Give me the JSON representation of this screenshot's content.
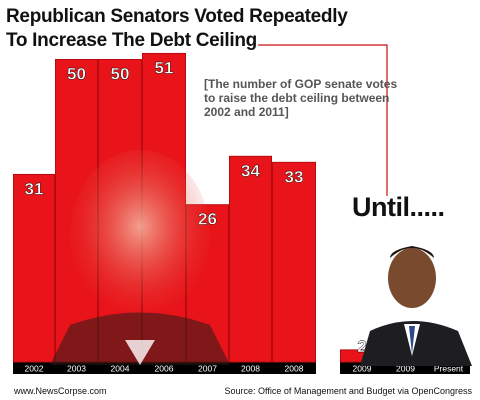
{
  "header": {
    "title_line1": "Republican Senators Voted Repeatedly",
    "title_line2": "To Increase The Debt Ceiling"
  },
  "annotation": {
    "note": "[The number of GOP senate votes to raise the debt ceiling between 2002 and 2011]",
    "until": "Until....."
  },
  "footer": {
    "left": "www.NewsCorpse.com",
    "right": "Source: Office of Management and Budget via OpenCongress"
  },
  "colors": {
    "bar_red": "#e8141a",
    "bar_dark": "#b60c10",
    "axis_black": "#000000",
    "connector": "#cc1111"
  },
  "chart_data": {
    "type": "bar",
    "title": "Republican Senators Voted Repeatedly To Increase The Debt Ceiling",
    "xlabel": "",
    "ylabel": "",
    "categories": [
      "2002",
      "2003",
      "2004",
      "2006",
      "2007",
      "2008",
      "2008",
      "2009",
      "2009",
      "Present"
    ],
    "values": [
      31,
      50,
      50,
      51,
      26,
      34,
      33,
      2,
      1,
      0
    ],
    "ylim": [
      0,
      60
    ],
    "grid": false,
    "legend": "none"
  }
}
